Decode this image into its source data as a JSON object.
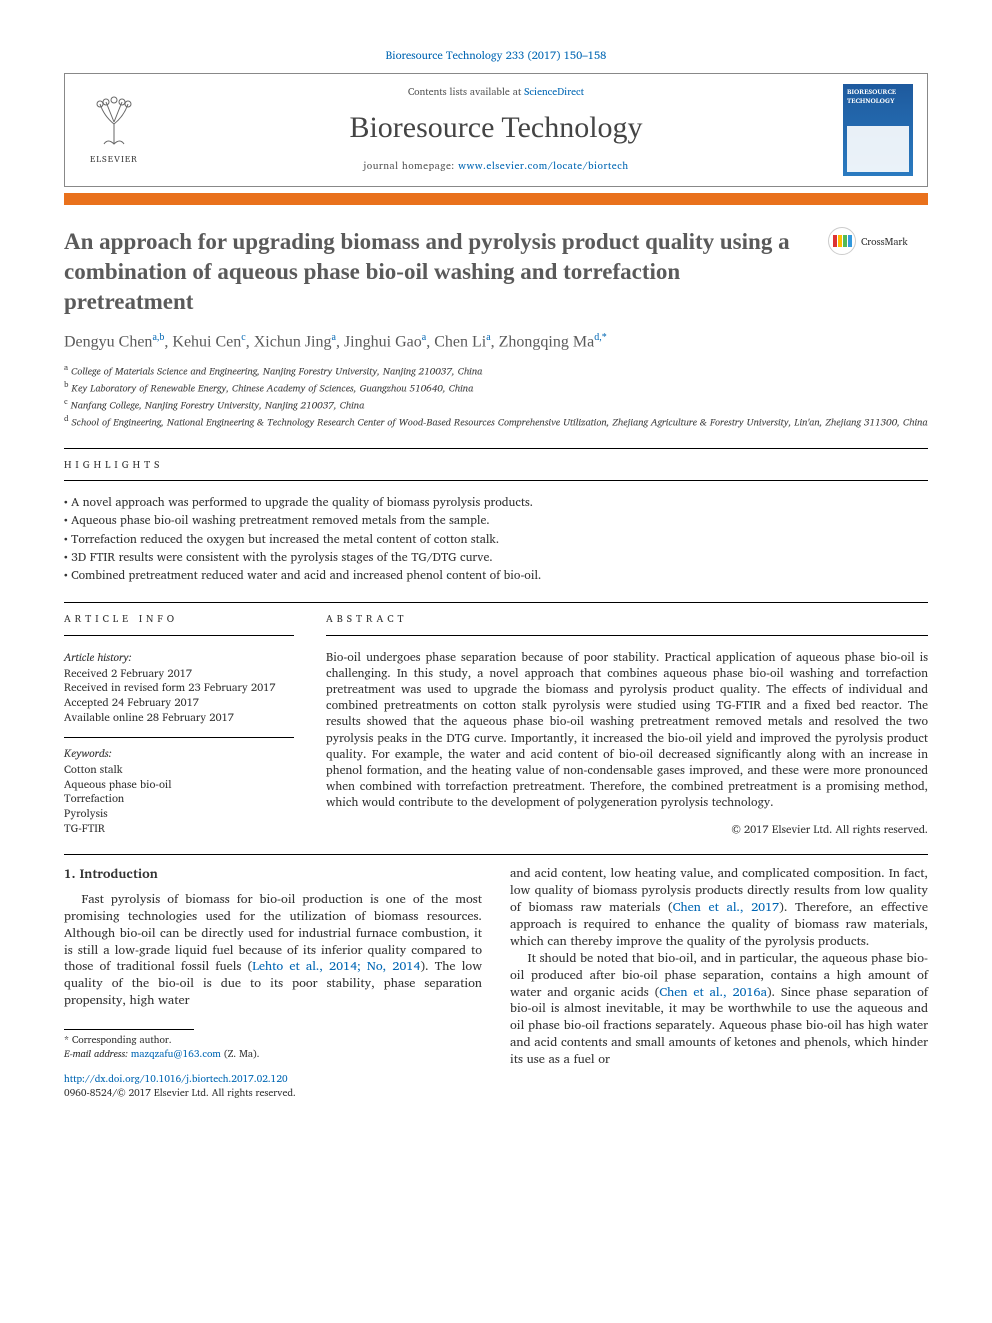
{
  "citation": {
    "text": "Bioresource Technology 233 (2017) 150–158",
    "link_color": "#0066b3"
  },
  "header": {
    "contents_prefix": "Contents lists available at ",
    "contents_link": "ScienceDirect",
    "journal": "Bioresource Technology",
    "homepage_prefix": "journal homepage: ",
    "homepage_url": "www.elsevier.com/locate/biortech",
    "publisher": "ELSEVIER",
    "cover_label": "BIORESOURCE TECHNOLOGY"
  },
  "accent_bar_color": "#e9711c",
  "title": "An approach for upgrading biomass and pyrolysis product quality using a combination of aqueous phase bio-oil washing and torrefaction pretreatment",
  "crossmark_label": "CrossMark",
  "authors_html": "Dengyu Chen|a,b|, Kehui Cen|c|, Xichun Jing|a|, Jinghui Gao|a|, Chen Li|a|, Zhongqing Ma|d,*|",
  "author_list": [
    {
      "name": "Dengyu Chen",
      "sup": "a,b"
    },
    {
      "name": "Kehui Cen",
      "sup": "c"
    },
    {
      "name": "Xichun Jing",
      "sup": "a"
    },
    {
      "name": "Jinghui Gao",
      "sup": "a"
    },
    {
      "name": "Chen Li",
      "sup": "a"
    },
    {
      "name": "Zhongqing Ma",
      "sup": "d,*"
    }
  ],
  "affiliations": [
    {
      "sup": "a",
      "text": "College of Materials Science and Engineering, Nanjing Forestry University, Nanjing 210037, China"
    },
    {
      "sup": "b",
      "text": "Key Laboratory of Renewable Energy, Chinese Academy of Sciences, Guangzhou 510640, China"
    },
    {
      "sup": "c",
      "text": "Nanfang College, Nanjing Forestry University, Nanjing 210037, China"
    },
    {
      "sup": "d",
      "text": "School of Engineering, National Engineering & Technology Research Center of Wood-Based Resources Comprehensive Utilization, Zhejiang Agriculture & Forestry University, Lin'an, Zhejiang 311300, China"
    }
  ],
  "highlights_label": "HIGHLIGHTS",
  "highlights": [
    "A novel approach was performed to upgrade the quality of biomass pyrolysis products.",
    "Aqueous phase bio-oil washing pretreatment removed metals from the sample.",
    "Torrefaction reduced the oxygen but increased the metal content of cotton stalk.",
    "3D FTIR results were consistent with the pyrolysis stages of the TG/DTG curve.",
    "Combined pretreatment reduced water and acid and increased phenol content of bio-oil."
  ],
  "article_info_label": "ARTICLE INFO",
  "abstract_label": "ABSTRACT",
  "history_label": "Article history:",
  "history": [
    "Received 2 February 2017",
    "Received in revised form 23 February 2017",
    "Accepted 24 February 2017",
    "Available online 28 February 2017"
  ],
  "keywords_label": "Keywords:",
  "keywords": [
    "Cotton stalk",
    "Aqueous phase bio-oil",
    "Torrefaction",
    "Pyrolysis",
    "TG-FTIR"
  ],
  "abstract": "Bio-oil undergoes phase separation because of poor stability. Practical application of aqueous phase bio-oil is challenging. In this study, a novel approach that combines aqueous phase bio-oil washing and torrefaction pretreatment was used to upgrade the biomass and pyrolysis product quality. The effects of individual and combined pretreatments on cotton stalk pyrolysis were studied using TG-FTIR and a fixed bed reactor. The results showed that the aqueous phase bio-oil washing pretreatment removed metals and resolved the two pyrolysis peaks in the DTG curve. Importantly, it increased the bio-oil yield and improved the pyrolysis product quality. For example, the water and acid content of bio-oil decreased significantly along with an increase in phenol formation, and the heating value of non-condensable gases improved, and these were more pronounced when combined with torrefaction pretreatment. Therefore, the combined pretreatment is a promising method, which would contribute to the development of polygeneration pyrolysis technology.",
  "copyright": "© 2017 Elsevier Ltd. All rights reserved.",
  "intro_heading": "1. Introduction",
  "intro_p1_a": "Fast pyrolysis of biomass for bio-oil production is one of the most promising technologies used for the utilization of biomass resources. Although bio-oil can be directly used for industrial furnace combustion, it is still a low-grade liquid fuel because of its inferior quality compared to those of traditional fossil fuels (",
  "intro_p1_link": "Lehto et al., 2014; No, 2014",
  "intro_p1_b": "). The low quality of the bio-oil is due to its poor stability, phase separation propensity, high water",
  "intro_p2_a": "and acid content, low heating value, and complicated composition. In fact, low quality of biomass pyrolysis products directly results from low quality of biomass raw materials (",
  "intro_p2_link": "Chen et al., 2017",
  "intro_p2_b": "). Therefore, an effective approach is required to enhance the quality of biomass raw materials, which can thereby improve the quality of the pyrolysis products.",
  "intro_p3_a": "It should be noted that bio-oil, and in particular, the aqueous phase bio-oil produced after bio-oil phase separation, contains a high amount of water and organic acids (",
  "intro_p3_link": "Chen et al., 2016a",
  "intro_p3_b": "). Since phase separation of bio-oil is almost inevitable, it may be worthwhile to use the aqueous and oil phase bio-oil fractions separately. Aqueous phase bio-oil has high water and acid contents and small amounts of ketones and phenols, which hinder its use as a fuel or",
  "footnote": {
    "star": "* Corresponding author.",
    "email_label": "E-mail address: ",
    "email": "mazqzafu@163.com",
    "email_suffix": " (Z. Ma)."
  },
  "footer": {
    "doi": "http://dx.doi.org/10.1016/j.biortech.2017.02.120",
    "issn_line": "0960-8524/© 2017 Elsevier Ltd. All rights reserved."
  },
  "colors": {
    "link": "#0066b3",
    "accent": "#e9711c",
    "text_gray": "#5a5a5a",
    "cover_bg_top": "#1e5a9e",
    "cover_bg_bot": "#2a7ac0"
  }
}
